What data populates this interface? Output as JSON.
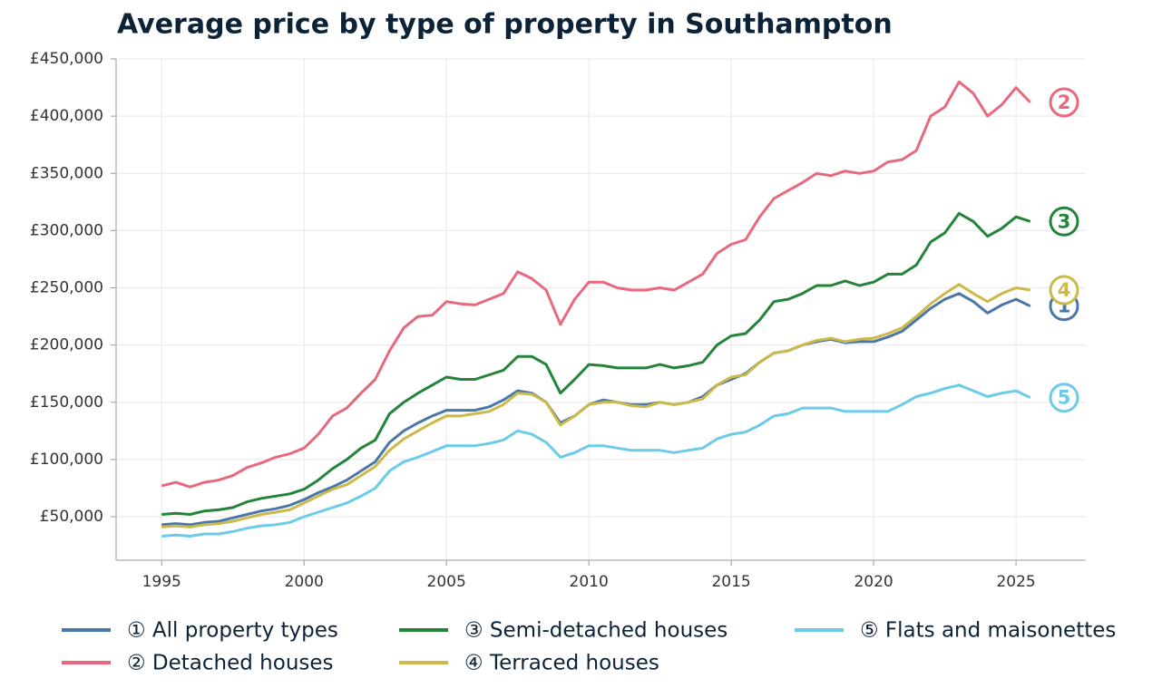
{
  "chart_data": {
    "type": "line",
    "title": "Average price by type of property in Southampton",
    "x": [
      1995,
      1995.5,
      1996,
      1996.5,
      1997,
      1997.5,
      1998,
      1998.5,
      1999,
      1999.5,
      2000,
      2000.5,
      2001,
      2001.5,
      2002,
      2002.5,
      2003,
      2003.5,
      2004,
      2004.5,
      2005,
      2005.5,
      2006,
      2006.5,
      2007,
      2007.5,
      2008,
      2008.5,
      2009,
      2009.5,
      2010,
      2010.5,
      2011,
      2011.5,
      2012,
      2012.5,
      2013,
      2013.5,
      2014,
      2014.5,
      2015,
      2015.5,
      2016,
      2016.5,
      2017,
      2017.5,
      2018,
      2018.5,
      2019,
      2019.5,
      2020,
      2020.5,
      2021,
      2021.5,
      2022,
      2022.5,
      2023,
      2023.5,
      2024,
      2024.5,
      2025,
      2025.5
    ],
    "series": [
      {
        "name": "① All property types",
        "end_label": "1",
        "color": "#4a77a8",
        "values": [
          43000,
          44000,
          43000,
          45000,
          46000,
          49000,
          52000,
          55000,
          57000,
          60000,
          65000,
          71000,
          76000,
          82000,
          90000,
          98000,
          115000,
          125000,
          132000,
          138000,
          143000,
          143000,
          143000,
          146000,
          152000,
          160000,
          158000,
          150000,
          132000,
          138000,
          148000,
          152000,
          150000,
          148000,
          148000,
          150000,
          148000,
          150000,
          155000,
          165000,
          170000,
          175000,
          185000,
          193000,
          195000,
          200000,
          203000,
          205000,
          202000,
          203000,
          203000,
          207000,
          212000,
          222000,
          232000,
          240000,
          245000,
          238000,
          228000,
          235000,
          240000,
          234000
        ]
      },
      {
        "name": "② Detached houses",
        "end_label": "2",
        "color": "#e8697d",
        "values": [
          77000,
          80000,
          76000,
          80000,
          82000,
          86000,
          93000,
          97000,
          102000,
          105000,
          110000,
          122000,
          138000,
          145000,
          158000,
          170000,
          195000,
          215000,
          225000,
          226000,
          238000,
          236000,
          235000,
          240000,
          245000,
          264000,
          258000,
          248000,
          218000,
          240000,
          255000,
          255000,
          250000,
          248000,
          248000,
          250000,
          248000,
          255000,
          262000,
          280000,
          288000,
          292000,
          312000,
          328000,
          335000,
          342000,
          350000,
          348000,
          352000,
          350000,
          352000,
          360000,
          362000,
          370000,
          400000,
          408000,
          430000,
          420000,
          400000,
          410000,
          425000,
          412000
        ]
      },
      {
        "name": "③ Semi-detached houses",
        "end_label": "3",
        "color": "#23843a",
        "values": [
          52000,
          53000,
          52000,
          55000,
          56000,
          58000,
          63000,
          66000,
          68000,
          70000,
          74000,
          82000,
          92000,
          100000,
          110000,
          117000,
          140000,
          150000,
          158000,
          165000,
          172000,
          170000,
          170000,
          174000,
          178000,
          190000,
          190000,
          183000,
          158000,
          170000,
          183000,
          182000,
          180000,
          180000,
          180000,
          183000,
          180000,
          182000,
          185000,
          200000,
          208000,
          210000,
          222000,
          238000,
          240000,
          245000,
          252000,
          252000,
          256000,
          252000,
          255000,
          262000,
          262000,
          270000,
          290000,
          298000,
          315000,
          308000,
          295000,
          302000,
          312000,
          308000
        ]
      },
      {
        "name": "④ Terraced houses",
        "end_label": "4",
        "color": "#cbba4a",
        "values": [
          41000,
          42000,
          41000,
          43000,
          44000,
          46000,
          49000,
          52000,
          54000,
          56000,
          62000,
          68000,
          74000,
          78000,
          86000,
          94000,
          108000,
          118000,
          125000,
          132000,
          138000,
          138000,
          140000,
          142000,
          148000,
          158000,
          157000,
          150000,
          130000,
          138000,
          148000,
          150000,
          150000,
          147000,
          146000,
          150000,
          148000,
          150000,
          153000,
          165000,
          172000,
          174000,
          185000,
          193000,
          195000,
          200000,
          204000,
          206000,
          203000,
          205000,
          206000,
          210000,
          215000,
          225000,
          236000,
          245000,
          253000,
          245000,
          238000,
          245000,
          250000,
          248000
        ]
      },
      {
        "name": "⑤ Flats and maisonettes",
        "end_label": "5",
        "color": "#6bcbe8",
        "values": [
          33000,
          34000,
          33000,
          35000,
          35000,
          37000,
          40000,
          42000,
          43000,
          45000,
          50000,
          54000,
          58000,
          62000,
          68000,
          75000,
          90000,
          98000,
          102000,
          107000,
          112000,
          112000,
          112000,
          114000,
          117000,
          125000,
          122000,
          115000,
          102000,
          106000,
          112000,
          112000,
          110000,
          108000,
          108000,
          108000,
          106000,
          108000,
          110000,
          118000,
          122000,
          124000,
          130000,
          138000,
          140000,
          145000,
          145000,
          145000,
          142000,
          142000,
          142000,
          142000,
          148000,
          155000,
          158000,
          162000,
          165000,
          160000,
          155000,
          158000,
          160000,
          154000
        ]
      }
    ],
    "xlim": [
      1993.4,
      2027.45
    ],
    "xticks": [
      1995,
      2000,
      2005,
      2010,
      2015,
      2020,
      2025
    ],
    "ylim": [
      12000,
      450000
    ],
    "yticks": [
      {
        "value": 50000,
        "label": "£50,000"
      },
      {
        "value": 100000,
        "label": "£100,000"
      },
      {
        "value": 150000,
        "label": "£150,000"
      },
      {
        "value": 200000,
        "label": "£200,000"
      },
      {
        "value": 250000,
        "label": "£250,000"
      },
      {
        "value": 300000,
        "label": "£300,000"
      },
      {
        "value": 350000,
        "label": "£350,000"
      },
      {
        "value": 400000,
        "label": "£400,000"
      },
      {
        "value": 450000,
        "label": "£450,000"
      }
    ],
    "grid": true
  }
}
